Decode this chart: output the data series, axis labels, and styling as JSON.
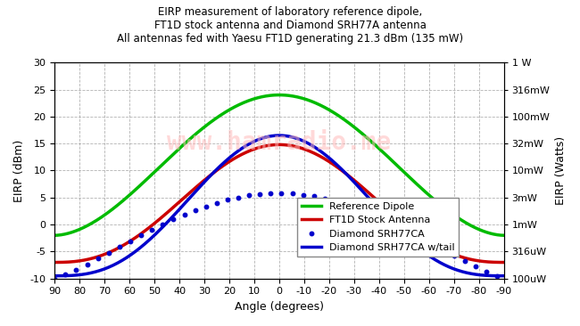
{
  "title_line1": "EIRP measurement of laboratory reference dipole,",
  "title_line2": "FT1D stock antenna and Diamond SRH77A antenna",
  "title_line3": "All antennas fed with Yaesu FT1D generating 21.3 dBm (135 mW)",
  "xlabel": "Angle (degrees)",
  "ylabel_left": "EIRP (dBm)",
  "ylabel_right": "EIRP (Watts)",
  "watermark": "www.hamradio.me",
  "ylim": [
    -10,
    30
  ],
  "right_yticks_dBm": [
    -10,
    -5,
    0,
    5,
    10,
    15,
    20,
    25,
    30
  ],
  "right_ytick_labels": [
    "100uW",
    "316uW",
    "1mW",
    "3mW",
    "10mW",
    "32mW",
    "100mW",
    "316mW",
    "1 W"
  ],
  "left_yticks": [
    -10,
    -5,
    0,
    5,
    10,
    15,
    20,
    25,
    30
  ],
  "xtick_labels": [
    "90",
    "80",
    "70",
    "60",
    "50",
    "40",
    "30",
    "20",
    "10",
    "0",
    "-10",
    "-20",
    "-30",
    "-40",
    "-50",
    "-60",
    "-70",
    "-80",
    "-90"
  ],
  "colors": {
    "reference_dipole": "#00bb00",
    "ft1d_stock": "#cc0000",
    "diamond_dashed": "#0000cc",
    "diamond_solid": "#0000cc",
    "grid": "#aaaaaa",
    "watermark": "#ffbbbb",
    "background": "#ffffff"
  },
  "legend_labels": [
    "Reference Dipole",
    "FT1D Stock Antenna",
    "Diamond SRH77CA",
    "Diamond SRH77CA w/tail"
  ],
  "ref_dip_peak": 24.0,
  "ref_dip_trough": -2.0,
  "ref_dip_p": 1.8,
  "ft1d_peak": 14.8,
  "ft1d_trough": -7.0,
  "ft1d_p": 2.5,
  "diam_solid_peak": 16.5,
  "diam_solid_trough": -9.5,
  "diam_solid_p": 2.8,
  "diam_dash_peak": 5.8,
  "diam_dash_trough": -10.0,
  "diam_dash_p": 1.2
}
